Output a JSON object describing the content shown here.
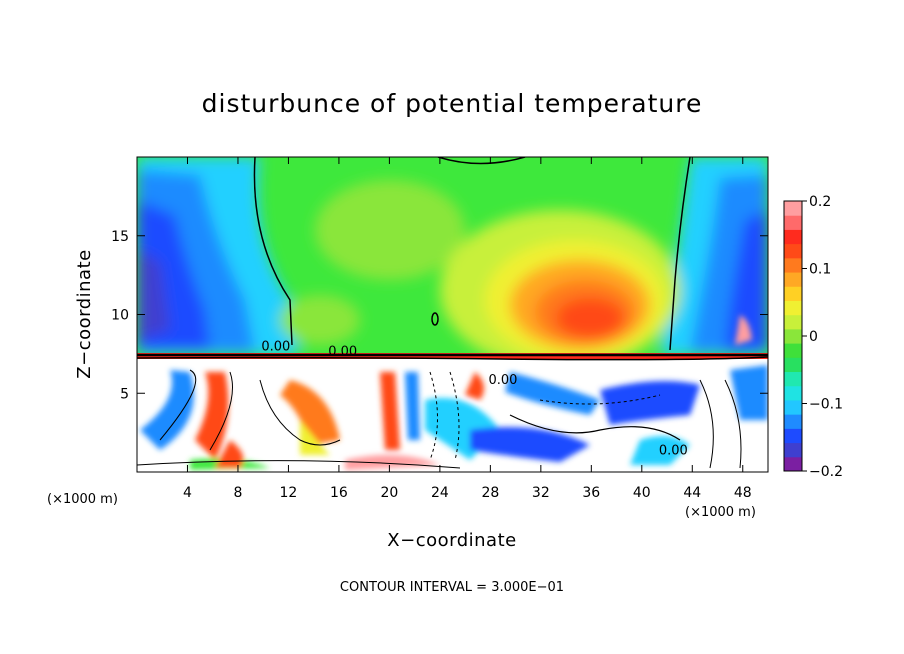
{
  "chart_data": {
    "type": "heatmap",
    "title": "disturbunce of potential temperature",
    "xlabel": "X−coordinate",
    "ylabel": "Z−coordinate",
    "x_unit": "(×1000 m)",
    "z_unit": "(×1000 m)",
    "xlim": [
      0,
      50
    ],
    "ylim": [
      0,
      20
    ],
    "x_ticks": [
      4,
      8,
      12,
      16,
      20,
      24,
      28,
      32,
      36,
      40,
      44,
      48
    ],
    "y_ticks": [
      5,
      10,
      15
    ],
    "colorbar": {
      "vmin": -0.2,
      "vmax": 0.2,
      "tick_values": [
        0.2,
        0.1,
        0,
        -0.1,
        -0.2
      ],
      "tick_labels": [
        "0.2",
        "0.1",
        "0",
        "−0.1",
        "−0.2"
      ],
      "colors": [
        "#7b1fa2",
        "#3f3fcf",
        "#1e4bff",
        "#1f8bff",
        "#22c7ff",
        "#1fe3e3",
        "#20e8b0",
        "#28e060",
        "#3fe03a",
        "#8ae63a",
        "#c8f03a",
        "#f0f032",
        "#ffd024",
        "#ffa824",
        "#ff7a1e",
        "#ff4a18",
        "#ff2b1e",
        "#ff6a6a",
        "#ff9ea0"
      ]
    },
    "contour_labels": [
      {
        "text": "0.00",
        "x": 11.0,
        "z": 7.7
      },
      {
        "text": "0.00",
        "x": 16.3,
        "z": 7.4
      },
      {
        "text": "0.00",
        "x": 29.0,
        "z": 5.6
      },
      {
        "text": "0.00",
        "x": 42.5,
        "z": 1.1
      }
    ],
    "footer": "CONTOUR INTERVAL = 3.000E−01"
  }
}
